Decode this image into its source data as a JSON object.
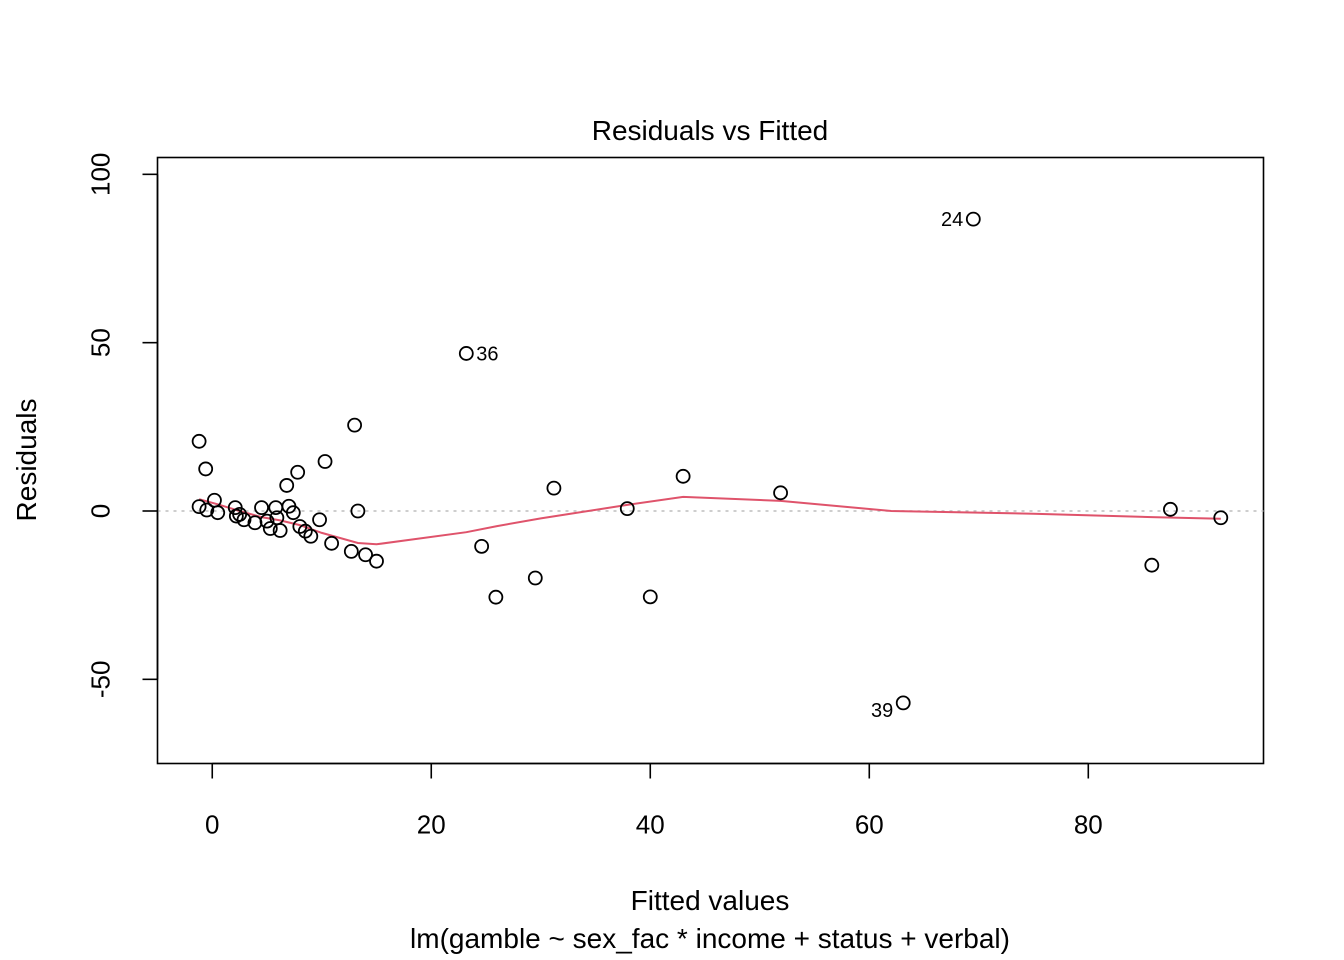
{
  "chart_data": {
    "type": "scatter",
    "title": "Residuals vs Fitted",
    "xlabel": "Fitted values",
    "subtitle": "lm(gamble ~ sex_fac * income + status + verbal)",
    "ylabel": "Residuals",
    "xlim": [
      -5,
      96
    ],
    "ylim": [
      -75,
      105
    ],
    "xticks": [
      0,
      20,
      40,
      60,
      80
    ],
    "yticks": [
      -50,
      0,
      50,
      100
    ],
    "grid": false,
    "points": [
      {
        "x": -1.2,
        "y": 20.7
      },
      {
        "x": -0.6,
        "y": 12.5
      },
      {
        "x": -1.2,
        "y": 1.3
      },
      {
        "x": -0.5,
        "y": 0.3
      },
      {
        "x": 0.2,
        "y": 3.2
      },
      {
        "x": 0.5,
        "y": -0.5
      },
      {
        "x": 2.1,
        "y": 1.0
      },
      {
        "x": 2.2,
        "y": -1.5
      },
      {
        "x": 2.5,
        "y": -1.0
      },
      {
        "x": 2.9,
        "y": -2.6
      },
      {
        "x": 3.9,
        "y": -3.5
      },
      {
        "x": 4.5,
        "y": 1.0
      },
      {
        "x": 5.0,
        "y": -3.0
      },
      {
        "x": 5.3,
        "y": -5.2
      },
      {
        "x": 5.8,
        "y": 1.0
      },
      {
        "x": 5.9,
        "y": -2.0
      },
      {
        "x": 6.2,
        "y": -5.8
      },
      {
        "x": 6.8,
        "y": 7.6
      },
      {
        "x": 7.0,
        "y": 1.4
      },
      {
        "x": 7.4,
        "y": -0.5
      },
      {
        "x": 7.8,
        "y": 11.5
      },
      {
        "x": 8.0,
        "y": -4.6
      },
      {
        "x": 8.5,
        "y": -6.0
      },
      {
        "x": 9.0,
        "y": -7.5
      },
      {
        "x": 9.8,
        "y": -2.6
      },
      {
        "x": 10.3,
        "y": 14.7
      },
      {
        "x": 10.9,
        "y": -9.6
      },
      {
        "x": 12.7,
        "y": -12.0
      },
      {
        "x": 13.0,
        "y": 25.5
      },
      {
        "x": 13.3,
        "y": 0.0
      },
      {
        "x": 14.0,
        "y": -13.0
      },
      {
        "x": 15.0,
        "y": -14.9
      },
      {
        "x": 23.2,
        "y": 46.8
      },
      {
        "x": 24.6,
        "y": -10.5
      },
      {
        "x": 25.9,
        "y": -25.6
      },
      {
        "x": 29.5,
        "y": -19.9
      },
      {
        "x": 31.2,
        "y": 6.8
      },
      {
        "x": 37.9,
        "y": 0.7
      },
      {
        "x": 40.0,
        "y": -25.5
      },
      {
        "x": 43.0,
        "y": 10.3
      },
      {
        "x": 51.9,
        "y": 5.4
      },
      {
        "x": 63.1,
        "y": -57.0
      },
      {
        "x": 69.5,
        "y": 86.7
      },
      {
        "x": 85.8,
        "y": -16.1
      },
      {
        "x": 87.5,
        "y": 0.5
      },
      {
        "x": 92.1,
        "y": -2.0
      }
    ],
    "point_labels": [
      {
        "label": "36",
        "x": 23.2,
        "y": 46.8,
        "side": "right"
      },
      {
        "label": "24",
        "x": 69.5,
        "y": 86.7,
        "side": "left"
      },
      {
        "label": "39",
        "x": 63.1,
        "y": -57.0,
        "side": "left"
      }
    ],
    "reference_line": {
      "y": 0,
      "style": "dotted",
      "color": "#bebebe"
    },
    "smooth_line": {
      "color": "#df536b",
      "x": [
        -1.2,
        0.5,
        2.5,
        4.5,
        6.2,
        8.0,
        10.0,
        13.3,
        15.0,
        23.2,
        26.0,
        30.0,
        37.9,
        43.0,
        51.9,
        62.0,
        75.0,
        85.8,
        92.1
      ],
      "y": [
        3.5,
        2.0,
        0.0,
        -1.8,
        -2.8,
        -4.2,
        -6.5,
        -9.5,
        -9.9,
        -6.3,
        -4.5,
        -2.2,
        1.8,
        4.2,
        3.0,
        0.0,
        -0.8,
        -1.8,
        -2.3
      ]
    }
  }
}
